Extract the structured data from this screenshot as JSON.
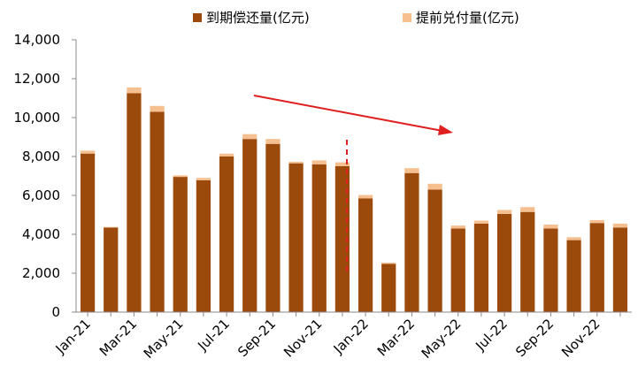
{
  "chart_data": {
    "type": "bar",
    "stacked": true,
    "title": "",
    "xlabel": "",
    "ylabel": "",
    "ylim": [
      0,
      14000
    ],
    "yticks": [
      "0",
      "2,000",
      "4,000",
      "6,000",
      "8,000",
      "10,000",
      "12,000",
      "14,000"
    ],
    "ytick_values": [
      0,
      2000,
      4000,
      6000,
      8000,
      10000,
      12000,
      14000
    ],
    "grid": false,
    "legend_position": "top",
    "categories": [
      "Jan-21",
      "Feb-21",
      "Mar-21",
      "Apr-21",
      "May-21",
      "Jun-21",
      "Jul-21",
      "Aug-21",
      "Sep-21",
      "Oct-21",
      "Nov-21",
      "Dec-21",
      "Jan-22",
      "Feb-22",
      "Mar-22",
      "Apr-22",
      "May-22",
      "Jun-22",
      "Jul-22",
      "Aug-22",
      "Sep-22",
      "Oct-22",
      "Nov-22",
      "Dec-22"
    ],
    "xtick_labels": [
      "Jan-21",
      "Mar-21",
      "May-21",
      "Jul-21",
      "Sep-21",
      "Nov-21",
      "Jan-22",
      "Mar-22",
      "May-22",
      "Jul-22",
      "Sep-22",
      "Nov-22"
    ],
    "series": [
      {
        "name": "到期偿还量(亿元)",
        "color": "#9c4a0c",
        "values": [
          8150,
          4350,
          11250,
          10300,
          6950,
          6780,
          8000,
          8900,
          8650,
          7650,
          7600,
          7500,
          5850,
          2480,
          7150,
          6300,
          4300,
          4550,
          5050,
          5150,
          4300,
          3700,
          4580,
          4350
        ]
      },
      {
        "name": "提前兑付量(亿元)",
        "color": "#f6bf8f",
        "values": [
          150,
          30,
          300,
          300,
          80,
          120,
          150,
          250,
          250,
          80,
          200,
          200,
          170,
          60,
          250,
          300,
          150,
          150,
          200,
          250,
          200,
          150,
          150,
          200
        ]
      }
    ],
    "annotations": {
      "dashed_line_color": "#e02020",
      "trend_arrow_color": "#e02020"
    }
  }
}
